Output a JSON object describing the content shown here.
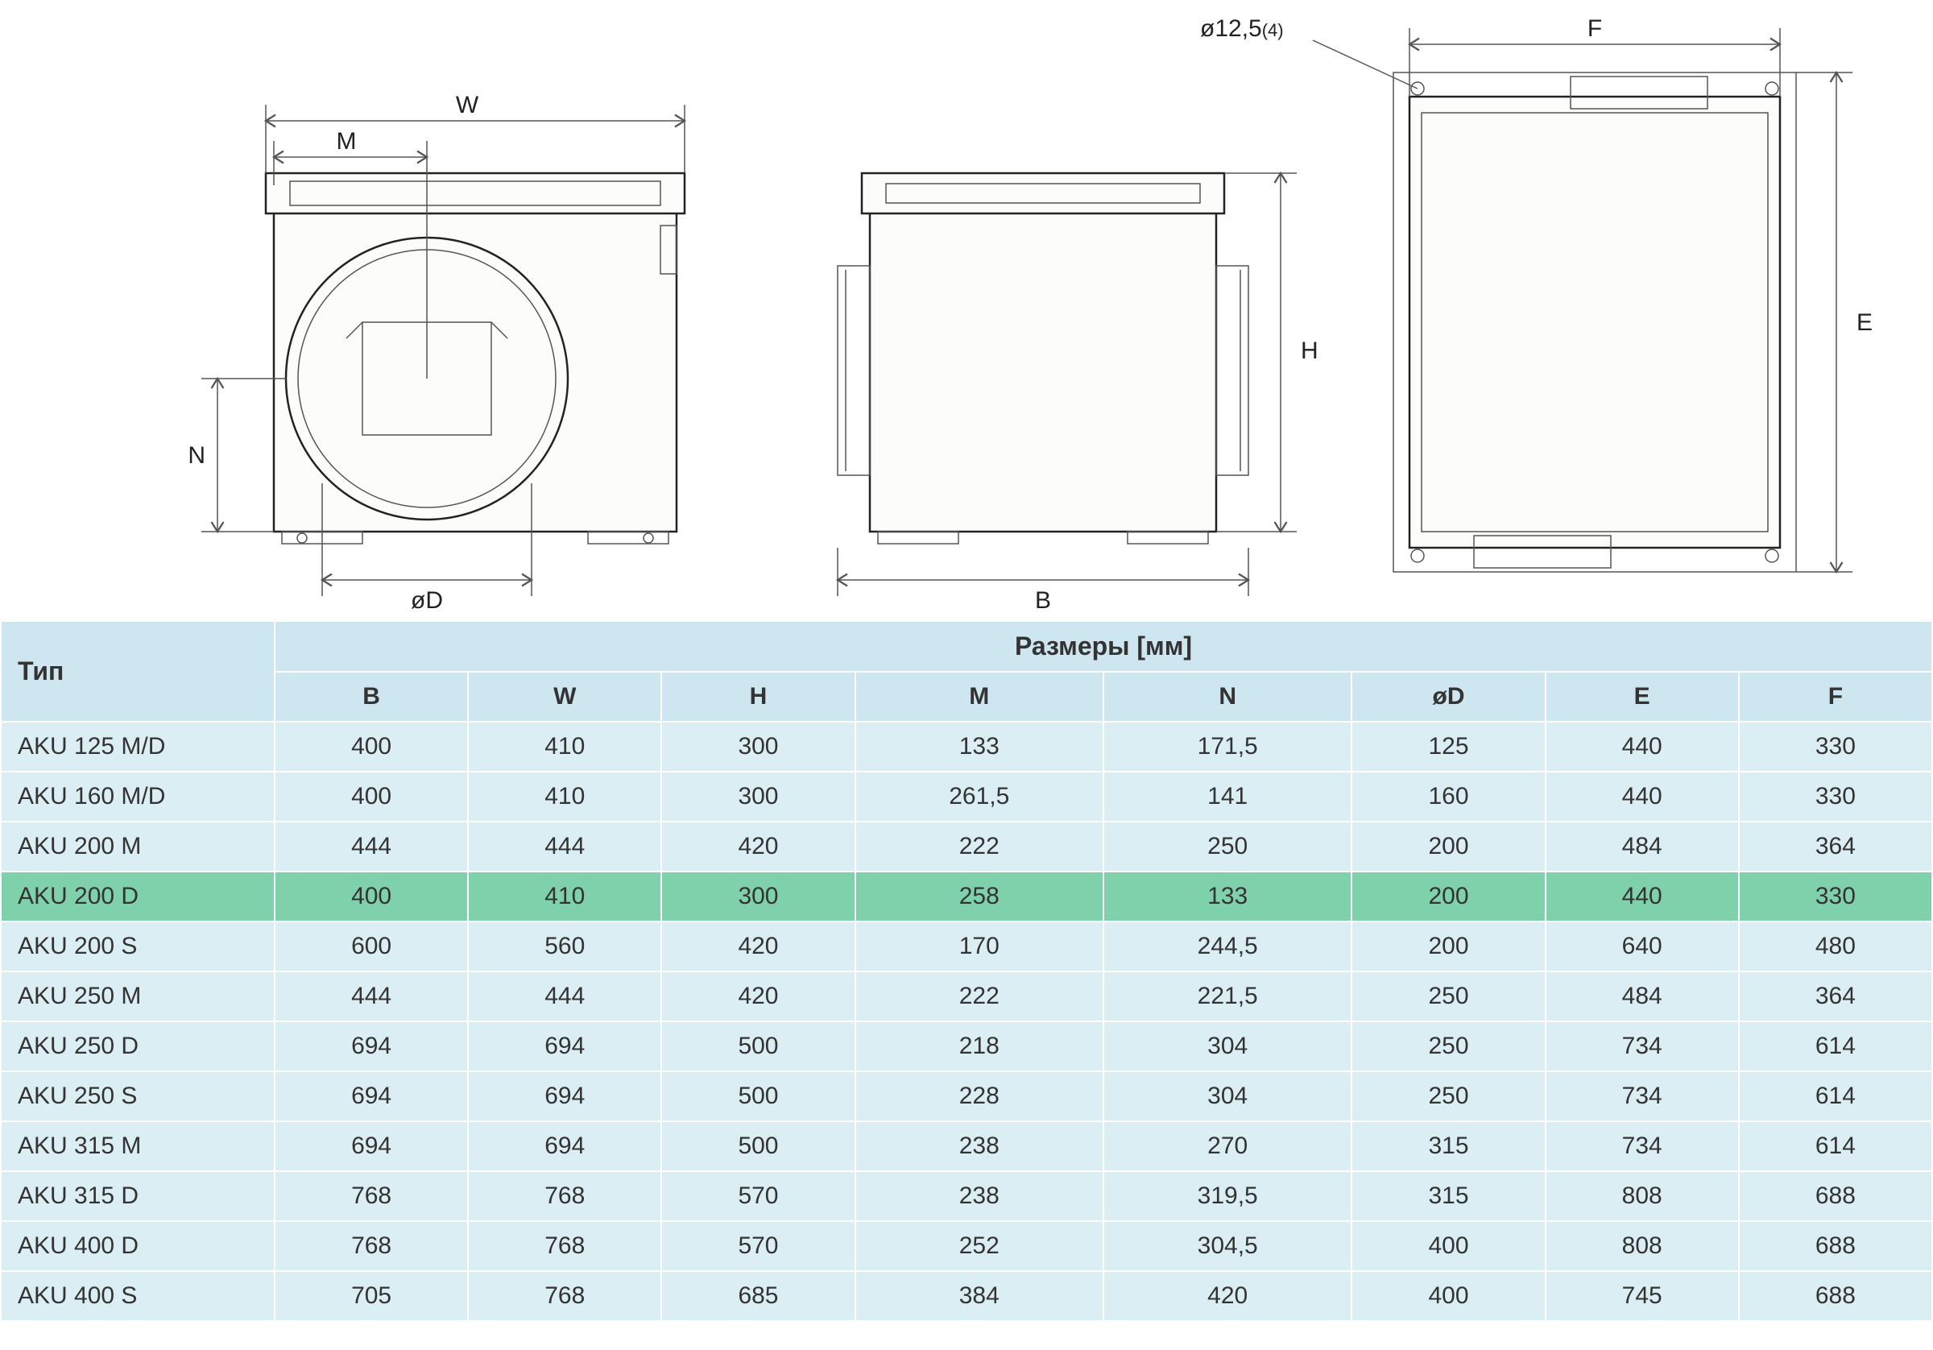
{
  "diagram": {
    "labels": {
      "W": "W",
      "M": "M",
      "N": "N",
      "oD": "øD",
      "H": "H",
      "B": "B",
      "E": "E",
      "F": "F",
      "hole": "ø12,5",
      "hole_count": "(4)"
    },
    "colors": {
      "line": "#222222",
      "dim": "#555555",
      "fill": "#fcfcfa",
      "bg": "#ffffff"
    }
  },
  "table": {
    "header": {
      "type": "Тип",
      "dimensions": "Размеры [мм]"
    },
    "columns": [
      "B",
      "W",
      "H",
      "M",
      "N",
      "øD",
      "E",
      "F"
    ],
    "rows": [
      {
        "type": "AKU 125 M/D",
        "v": [
          "400",
          "410",
          "300",
          "133",
          "171,5",
          "125",
          "440",
          "330"
        ],
        "highlight": false
      },
      {
        "type": "AKU 160 M/D",
        "v": [
          "400",
          "410",
          "300",
          "261,5",
          "141",
          "160",
          "440",
          "330"
        ],
        "highlight": false
      },
      {
        "type": "AKU 200 M",
        "v": [
          "444",
          "444",
          "420",
          "222",
          "250",
          "200",
          "484",
          "364"
        ],
        "highlight": false
      },
      {
        "type": "AKU 200 D",
        "v": [
          "400",
          "410",
          "300",
          "258",
          "133",
          "200",
          "440",
          "330"
        ],
        "highlight": true
      },
      {
        "type": "AKU 200 S",
        "v": [
          "600",
          "560",
          "420",
          "170",
          "244,5",
          "200",
          "640",
          "480"
        ],
        "highlight": false
      },
      {
        "type": "AKU 250 M",
        "v": [
          "444",
          "444",
          "420",
          "222",
          "221,5",
          "250",
          "484",
          "364"
        ],
        "highlight": false
      },
      {
        "type": "AKU 250 D",
        "v": [
          "694",
          "694",
          "500",
          "218",
          "304",
          "250",
          "734",
          "614"
        ],
        "highlight": false
      },
      {
        "type": "AKU 250 S",
        "v": [
          "694",
          "694",
          "500",
          "228",
          "304",
          "250",
          "734",
          "614"
        ],
        "highlight": false
      },
      {
        "type": "AKU 315 M",
        "v": [
          "694",
          "694",
          "500",
          "238",
          "270",
          "315",
          "734",
          "614"
        ],
        "highlight": false
      },
      {
        "type": "AKU 315 D",
        "v": [
          "768",
          "768",
          "570",
          "238",
          "319,5",
          "315",
          "808",
          "688"
        ],
        "highlight": false
      },
      {
        "type": "AKU 400 D",
        "v": [
          "768",
          "768",
          "570",
          "252",
          "304,5",
          "400",
          "808",
          "688"
        ],
        "highlight": false
      },
      {
        "type": "AKU 400 S",
        "v": [
          "705",
          "768",
          "685",
          "384",
          "420",
          "400",
          "745",
          "688"
        ],
        "highlight": false
      }
    ],
    "styling": {
      "header_bg": "#cde6ef",
      "row_bg": "#dbeef4",
      "highlight_bg": "#7fd1ab",
      "border_color": "#ffffff",
      "text_color": "#333333",
      "font_size": 30,
      "header_font_size": 32
    }
  }
}
